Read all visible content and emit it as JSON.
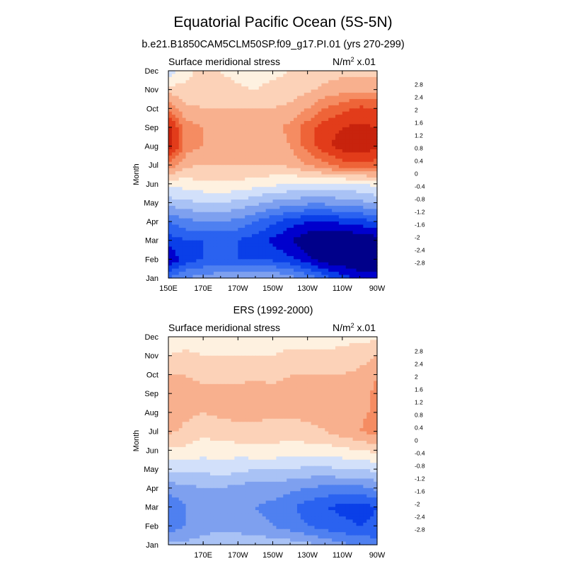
{
  "figure": {
    "title": "Equatorial Pacific Ocean (5S-5N)",
    "subtitle": "b.e21.B1850CAM5CLM50SP.f09_g17.PI.01 (yrs 270-299)"
  },
  "colorbar": {
    "colors": [
      "#00008a",
      "#0000cd",
      "#0a3fe8",
      "#2a62f0",
      "#4f80f0",
      "#7ea0ef",
      "#a9c2f5",
      "#d2e0fa",
      "#fef1e0",
      "#fcd2b8",
      "#f8b08e",
      "#f58c62",
      "#ee6438",
      "#e23c1a",
      "#c8230d",
      "#8b0000"
    ],
    "labels": [
      "-2.8",
      "-2.4",
      "-2",
      "-1.6",
      "-1.2",
      "-0.8",
      "-0.4",
      "0",
      "0.4",
      "0.8",
      "1.2",
      "1.6",
      "2",
      "2.4",
      "2.8"
    ],
    "levels": [
      -2.8,
      -2.4,
      -2.0,
      -1.6,
      -1.2,
      -0.8,
      -0.4,
      0,
      0.4,
      0.8,
      1.2,
      1.6,
      2.0,
      2.4,
      2.8
    ]
  },
  "chart_data": [
    {
      "type": "heatmap",
      "title": "Surface meridional stress",
      "units_label": "N/m",
      "units_sup": "2",
      "units_scale": " x.01",
      "ylabel": "Month",
      "y_tick_labels": [
        "Jan",
        "Feb",
        "Mar",
        "Apr",
        "May",
        "Jun",
        "Jul",
        "Aug",
        "Sep",
        "Oct",
        "Nov",
        "Dec"
      ],
      "x_tick_labels": [
        "150E",
        "170E",
        "170W",
        "150W",
        "130W",
        "110W",
        "90W"
      ],
      "x_range_lon": [
        150,
        270
      ],
      "x_ticks_lon": [
        150,
        170,
        190,
        210,
        230,
        250,
        270
      ],
      "x_grid_lon": [
        150,
        160,
        170,
        180,
        190,
        200,
        210,
        220,
        230,
        240,
        250,
        260,
        270
      ],
      "values": [
        [
          -1.6,
          -1.2,
          -1.0,
          -0.9,
          -0.8,
          -0.8,
          -0.8,
          -1.0,
          -1.3,
          -1.8,
          -2.2,
          -2.6,
          -2.6
        ],
        [
          -2.8,
          -2.2,
          -2.0,
          -2.0,
          -2.0,
          -2.0,
          -2.1,
          -2.3,
          -2.7,
          -3.1,
          -3.2,
          -3.2,
          -3.1
        ],
        [
          -2.2,
          -2.0,
          -2.0,
          -2.0,
          -2.0,
          -2.2,
          -2.5,
          -2.8,
          -3.1,
          -3.2,
          -3.2,
          -3.2,
          -3.0
        ],
        [
          -1.6,
          -1.3,
          -1.2,
          -1.2,
          -1.3,
          -1.6,
          -1.9,
          -2.2,
          -2.4,
          -2.4,
          -2.3,
          -2.2,
          -2.0
        ],
        [
          -0.6,
          -0.5,
          -0.4,
          -0.4,
          -0.5,
          -0.7,
          -0.9,
          -1.0,
          -1.1,
          -1.1,
          -1.0,
          -0.9,
          -0.7
        ],
        [
          0.1,
          0.2,
          0.3,
          0.35,
          0.3,
          0.2,
          0.1,
          0.0,
          -0.1,
          -0.1,
          -0.1,
          0.0,
          0.1
        ],
        [
          1.5,
          0.9,
          0.8,
          0.8,
          0.8,
          0.8,
          0.8,
          0.9,
          1.2,
          1.5,
          1.8,
          1.9,
          1.8
        ],
        [
          2.8,
          1.4,
          1.2,
          1.1,
          1.0,
          1.0,
          1.0,
          1.2,
          1.8,
          2.3,
          2.6,
          2.7,
          2.5
        ],
        [
          2.6,
          1.4,
          1.2,
          1.1,
          1.0,
          1.0,
          1.1,
          1.3,
          1.8,
          2.2,
          2.4,
          2.5,
          2.4
        ],
        [
          1.5,
          0.9,
          0.8,
          0.8,
          0.8,
          0.8,
          0.8,
          0.9,
          1.2,
          1.6,
          1.9,
          2.1,
          2.0
        ],
        [
          0.6,
          0.5,
          0.5,
          0.5,
          0.45,
          0.4,
          0.5,
          0.6,
          0.7,
          0.9,
          1.0,
          1.1,
          1.1
        ],
        [
          -0.3,
          0.3,
          0.5,
          0.4,
          0.3,
          0.2,
          0.3,
          0.4,
          0.5,
          0.6,
          0.7,
          0.7,
          0.7
        ]
      ],
      "cbar_min": -3.2,
      "cbar_max": 3.2
    },
    {
      "type": "heatmap",
      "header": "ERS (1992-2000)",
      "title": "Surface meridional stress",
      "units_label": "N/m",
      "units_sup": "2",
      "units_scale": " x.01",
      "ylabel": "Month",
      "y_tick_labels": [
        "Jan",
        "Feb",
        "Mar",
        "Apr",
        "May",
        "Jun",
        "Jul",
        "Aug",
        "Sep",
        "Oct",
        "Nov",
        "Dec"
      ],
      "x_tick_labels": [
        "170E",
        "170W",
        "150W",
        "130W",
        "110W",
        "90W"
      ],
      "x_range_lon": [
        150,
        270
      ],
      "x_ticks_lon": [
        170,
        190,
        210,
        230,
        250,
        270
      ],
      "x_grid_lon": [
        150,
        160,
        170,
        180,
        190,
        200,
        210,
        220,
        230,
        240,
        250,
        260,
        270
      ],
      "values": [
        [
          -0.6,
          -0.7,
          -0.6,
          -0.5,
          -0.5,
          -0.5,
          -0.6,
          -0.6,
          -0.7,
          -0.9,
          -1.1,
          -1.3,
          -1.4
        ],
        [
          -1.5,
          -1.2,
          -1.0,
          -0.9,
          -1.0,
          -1.1,
          -1.2,
          -1.4,
          -1.6,
          -1.8,
          -1.9,
          -2.0,
          -1.9
        ],
        [
          -1.6,
          -1.2,
          -1.0,
          -1.0,
          -1.1,
          -1.2,
          -1.3,
          -1.5,
          -1.8,
          -2.0,
          -2.1,
          -2.2,
          -2.0
        ],
        [
          -1.0,
          -0.9,
          -0.8,
          -0.8,
          -0.9,
          -1.0,
          -1.0,
          -1.1,
          -1.2,
          -1.3,
          -1.3,
          -1.3,
          -1.1
        ],
        [
          -0.3,
          -0.3,
          -0.3,
          -0.2,
          -0.3,
          -0.4,
          -0.4,
          -0.4,
          -0.5,
          -0.5,
          -0.4,
          -0.4,
          -0.3
        ],
        [
          0.3,
          0.3,
          0.2,
          0.2,
          0.2,
          0.3,
          0.3,
          0.2,
          0.2,
          0.2,
          0.3,
          0.4,
          0.5
        ],
        [
          0.9,
          0.7,
          0.5,
          0.6,
          0.7,
          0.7,
          0.6,
          0.6,
          0.7,
          0.8,
          1.0,
          1.2,
          1.4
        ],
        [
          1.0,
          0.9,
          0.8,
          0.9,
          0.9,
          0.9,
          0.9,
          0.9,
          0.9,
          0.9,
          1.0,
          1.1,
          1.3
        ],
        [
          1.1,
          0.9,
          0.9,
          0.9,
          0.9,
          1.0,
          0.9,
          0.9,
          0.9,
          0.9,
          0.9,
          1.0,
          1.3
        ],
        [
          0.8,
          0.8,
          0.7,
          0.7,
          0.7,
          0.7,
          0.7,
          0.8,
          0.8,
          0.8,
          0.8,
          0.9,
          1.2
        ],
        [
          0.4,
          0.5,
          0.4,
          0.4,
          0.4,
          0.4,
          0.4,
          0.5,
          0.5,
          0.5,
          0.5,
          0.6,
          0.8
        ],
        [
          0.1,
          0.2,
          0.1,
          0.0,
          0.1,
          0.2,
          0.2,
          0.2,
          0.2,
          0.2,
          0.3,
          0.3,
          0.3
        ]
      ],
      "cbar_min": -3.2,
      "cbar_max": 3.2
    }
  ]
}
